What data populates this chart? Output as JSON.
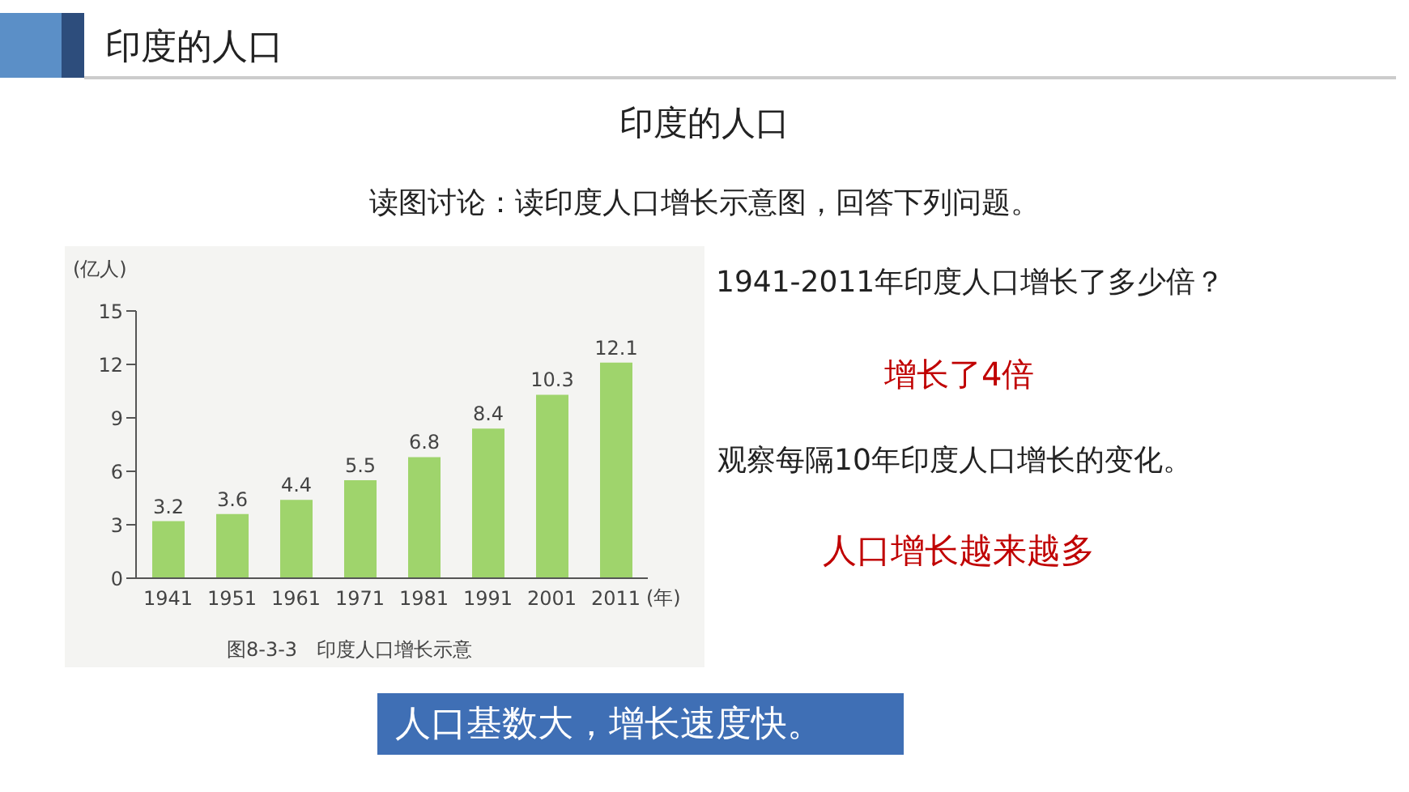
{
  "chart_data": {
    "type": "bar",
    "title": "印度的人口",
    "subtitle": "读图讨论：读印度人口增长示意图，回答下列问题。",
    "xlabel": "(年)",
    "ylabel": "(亿人)",
    "categories": [
      "1941",
      "1951",
      "1961",
      "1971",
      "1981",
      "1991",
      "2001",
      "2011"
    ],
    "values": [
      3.2,
      3.6,
      4.4,
      5.5,
      6.8,
      8.4,
      10.3,
      12.1
    ],
    "color": "#9fd46c",
    "ylim": [
      0,
      15
    ],
    "yticks": [
      0,
      3,
      6,
      9,
      12,
      15
    ],
    "data_labels": true,
    "grid": false,
    "legend": false,
    "annotations": [
      "印度的人口",
      "1941-2011年印度人口增长了多少倍？",
      "增长了4倍",
      "观察每隔10年印度人口增长的变化。",
      "人口增长越来越多",
      "图8-3-3　印度人口增长示意",
      "人口基数大，增长速度快。"
    ]
  }
}
